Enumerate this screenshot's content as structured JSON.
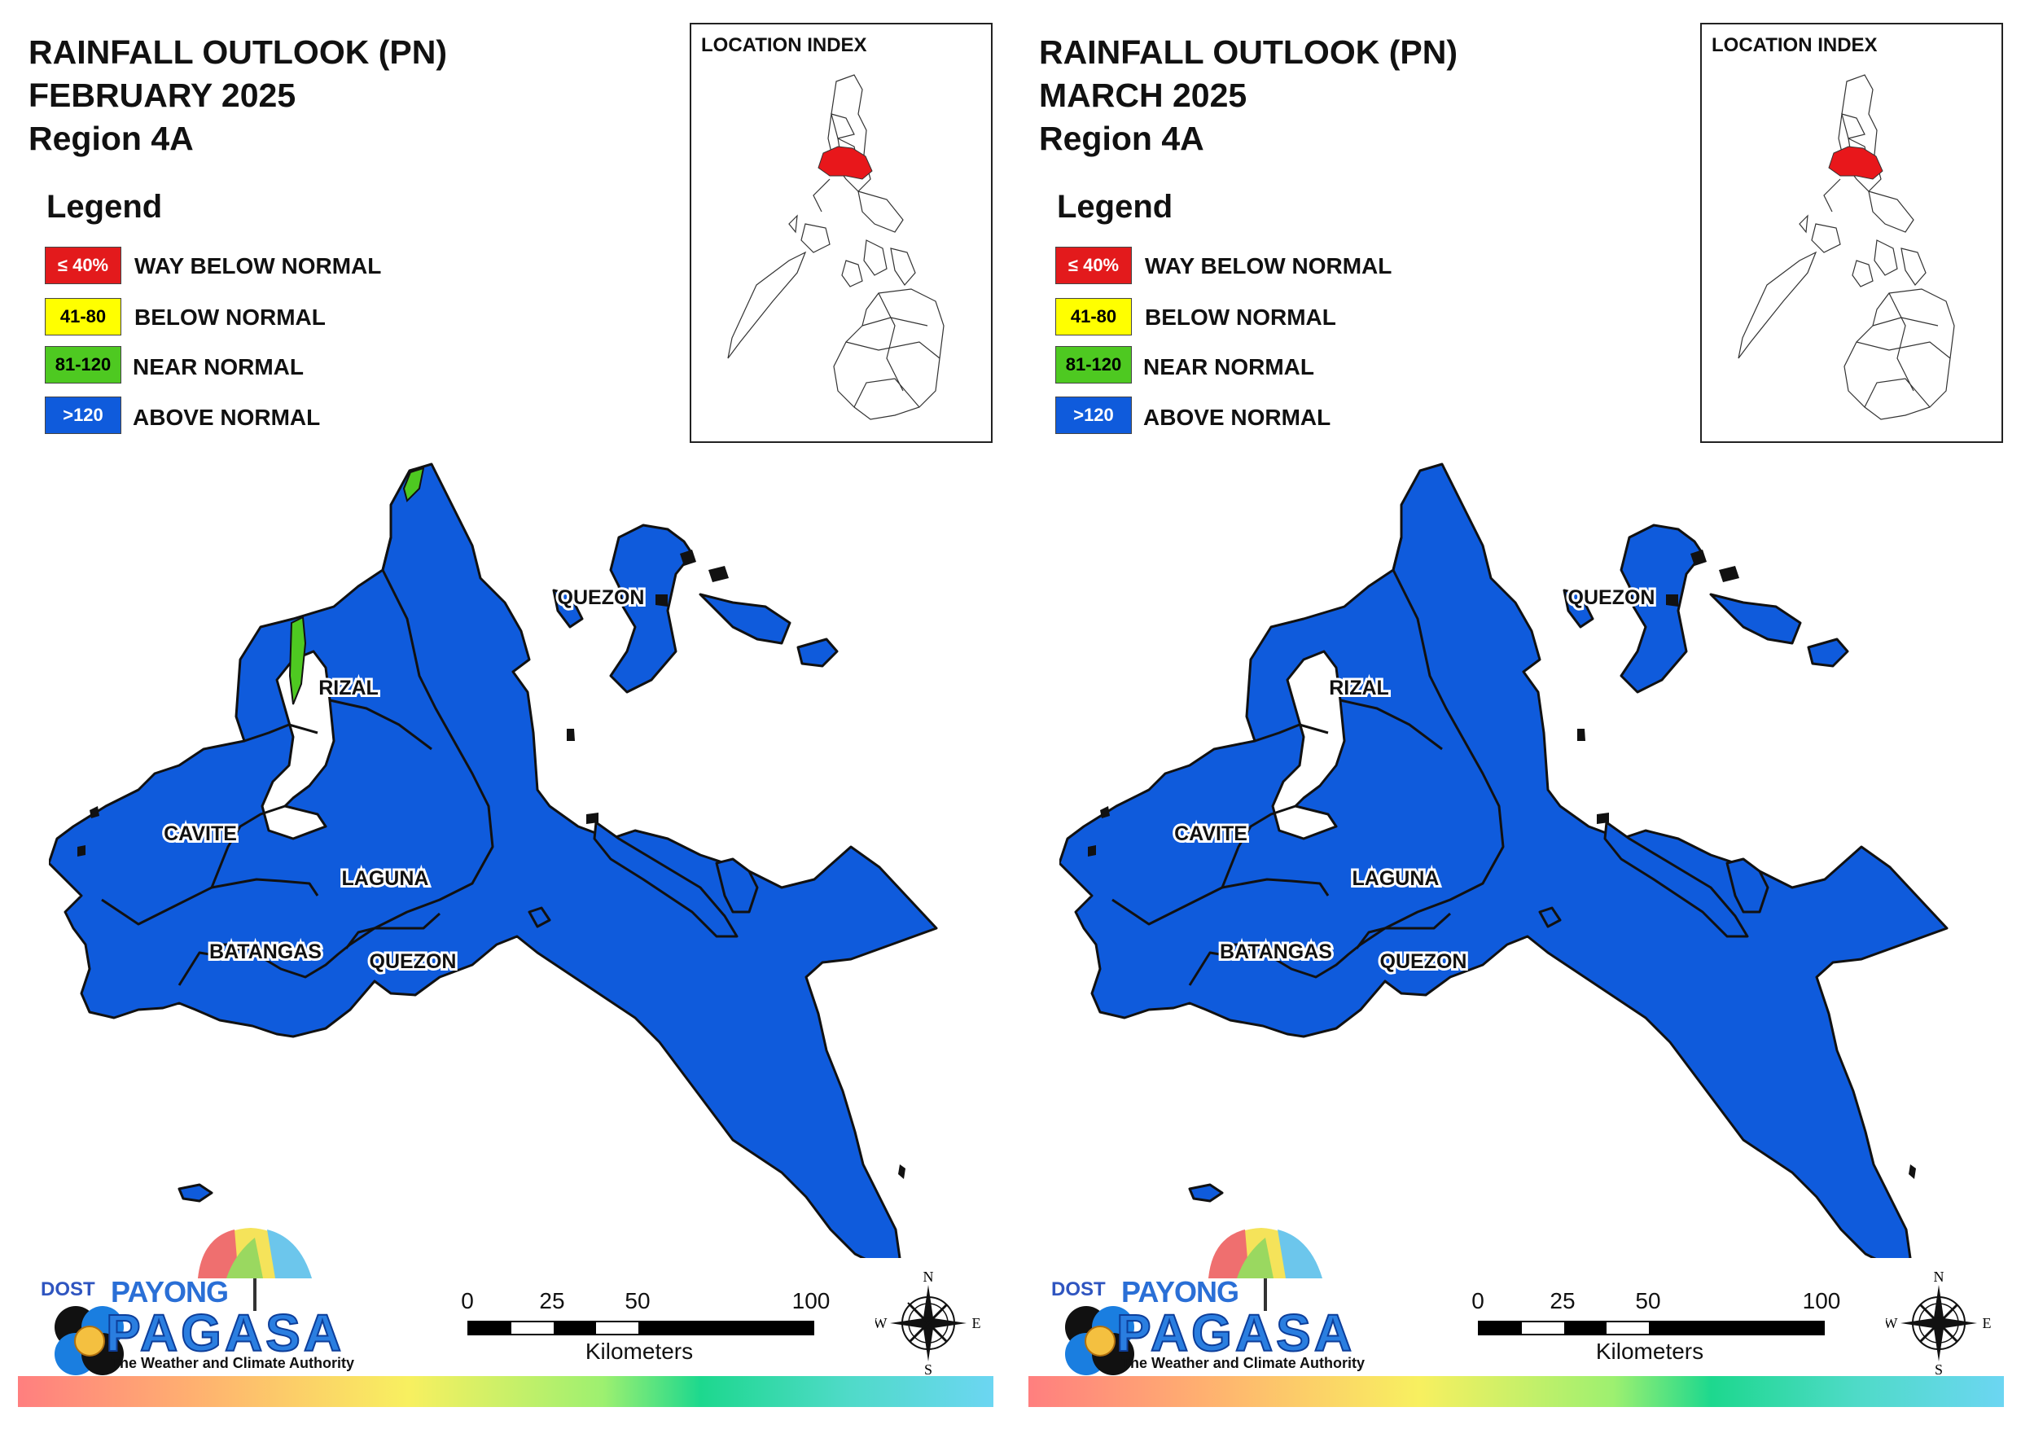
{
  "colors": {
    "way_below": "#e31a1c",
    "below": "#ffff00",
    "near": "#4ec921",
    "above": "#0f5bdc",
    "highlight": "#e8171b"
  },
  "legend": {
    "heading": "Legend",
    "items": [
      {
        "range": "≤ 40%",
        "label": "WAY BELOW NORMAL",
        "color": "#e31a1c",
        "text_color": "#ffffff"
      },
      {
        "range": "41-80",
        "label": "BELOW NORMAL",
        "color": "#ffff00",
        "text_color": "#000000"
      },
      {
        "range": "81-120",
        "label": "NEAR NORMAL",
        "color": "#4ec921",
        "text_color": "#000000"
      },
      {
        "range": ">120",
        "label": "ABOVE NORMAL",
        "color": "#0f5bdc",
        "text_color": "#ffffff"
      }
    ]
  },
  "location_index": {
    "title": "LOCATION INDEX"
  },
  "province_labels": [
    "QUEZON",
    "RIZAL",
    "CAVITE",
    "LAGUNA",
    "BATANGAS",
    "QUEZON"
  ],
  "scale": {
    "ticks": [
      "0",
      "25",
      "50",
      "100"
    ],
    "unit": "Kilometers"
  },
  "compass": {
    "n": "N",
    "e": "E",
    "s": "S",
    "w": "W"
  },
  "logo": {
    "dost": "DOST",
    "payong": "PAYONG",
    "pagasa": "PAGASA",
    "tagline": "The Weather and Climate Authority"
  },
  "panels": [
    {
      "title_line1": "RAINFALL OUTLOOK (PN)",
      "title_line2": "FEBRUARY 2025",
      "title_line3": "Region 4A",
      "near_normal_patches": true
    },
    {
      "title_line1": "RAINFALL OUTLOOK (PN)",
      "title_line2": "MARCH 2025",
      "title_line3": "Region 4A",
      "near_normal_patches": false
    }
  ]
}
